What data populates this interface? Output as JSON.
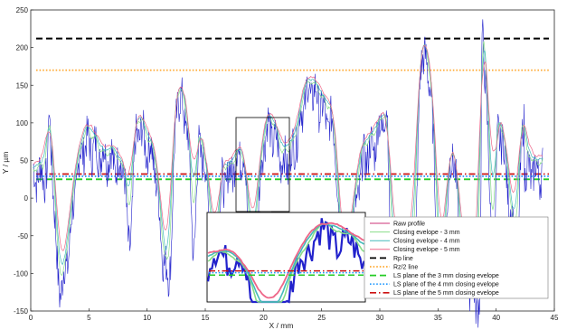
{
  "chart_data": {
    "type": "line",
    "title": "",
    "xlabel": "X / mm",
    "ylabel": "Y / µm",
    "xlim": [
      0,
      45
    ],
    "ylim": [
      -150,
      250
    ],
    "xticks": [
      0,
      5,
      10,
      15,
      20,
      25,
      30,
      35,
      40,
      45
    ],
    "yticks": [
      -150,
      -100,
      -50,
      0,
      50,
      100,
      150,
      200,
      250
    ],
    "xtick_labels": [
      "0",
      "5",
      "10",
      "15",
      "20",
      "25",
      "30",
      "35",
      "40",
      "45"
    ],
    "ytick_labels": [
      "-150",
      "-100",
      "-50",
      "0",
      "50",
      "100",
      "150",
      "200",
      "250"
    ],
    "grid": false,
    "legend_position": "bottom-right",
    "peaks": [
      {
        "x": 1.5,
        "y": 104
      },
      {
        "x": 4.7,
        "y": 72
      },
      {
        "x": 6.2,
        "y": 58
      },
      {
        "x": 8.0,
        "y": 40
      },
      {
        "x": 9.2,
        "y": 90
      },
      {
        "x": 10.3,
        "y": 62
      },
      {
        "x": 12.7,
        "y": 134
      },
      {
        "x": 13.4,
        "y": 100
      },
      {
        "x": 14.5,
        "y": 68
      },
      {
        "x": 16.5,
        "y": 20
      },
      {
        "x": 18.2,
        "y": 60
      },
      {
        "x": 20.3,
        "y": 92
      },
      {
        "x": 22.0,
        "y": 45
      },
      {
        "x": 24.0,
        "y": 142
      },
      {
        "x": 26.0,
        "y": 95
      },
      {
        "x": 29.0,
        "y": 60
      },
      {
        "x": 30.6,
        "y": 108
      },
      {
        "x": 33.6,
        "y": 192
      },
      {
        "x": 34.2,
        "y": 165
      },
      {
        "x": 36.3,
        "y": 60
      },
      {
        "x": 38.8,
        "y": 213
      },
      {
        "x": 40.2,
        "y": 90
      },
      {
        "x": 42.4,
        "y": 115
      }
    ],
    "valleys": [
      {
        "x": 2.5,
        "y": -118
      },
      {
        "x": 8.4,
        "y": -65
      },
      {
        "x": 11.8,
        "y": -105
      },
      {
        "x": 14.0,
        "y": -60
      },
      {
        "x": 16.0,
        "y": -75
      },
      {
        "x": 19.0,
        "y": -80
      },
      {
        "x": 26.8,
        "y": -100
      },
      {
        "x": 31.0,
        "y": -78
      },
      {
        "x": 33.0,
        "y": -68
      },
      {
        "x": 35.2,
        "y": -110
      },
      {
        "x": 37.0,
        "y": -90
      },
      {
        "x": 38.6,
        "y": -140
      },
      {
        "x": 39.8,
        "y": -80
      },
      {
        "x": 41.8,
        "y": -60
      }
    ],
    "series": [
      {
        "name": "Raw profile",
        "color": "#cc3377",
        "style": "solid",
        "ref": "raw"
      },
      {
        "name": "Closing evelope - 3 mm",
        "color": "#88dd88",
        "style": "solid",
        "ref": "env3"
      },
      {
        "name": "Closing evelope - 4 mm",
        "color": "#44bbbb",
        "style": "solid",
        "ref": "env4"
      },
      {
        "name": "Closing evelope - 5 mm",
        "color": "#ee6688",
        "style": "solid",
        "ref": "env5"
      },
      {
        "name": "Rp line",
        "color": "#000000",
        "style": "dashed",
        "value": 212
      },
      {
        "name": "Rz/2 line",
        "color": "#ffaa33",
        "style": "dotted",
        "value": 170
      },
      {
        "name": "LS plane of the 3 mm closing evelope",
        "color": "#22cc22",
        "style": "dashed",
        "value": 25
      },
      {
        "name": "LS plane of the 4 mm closing evelope",
        "color": "#2299ff",
        "style": "dotted",
        "value": 29
      },
      {
        "name": "LS plane of the 5 mm closing evelope",
        "color": "#cc1111",
        "style": "dashdot",
        "value": 32
      }
    ],
    "zoom_region": {
      "xlim": [
        17.5,
        21.5
      ],
      "ylim": [
        -20,
        130
      ]
    },
    "blue_series_color": "#2222cc"
  }
}
